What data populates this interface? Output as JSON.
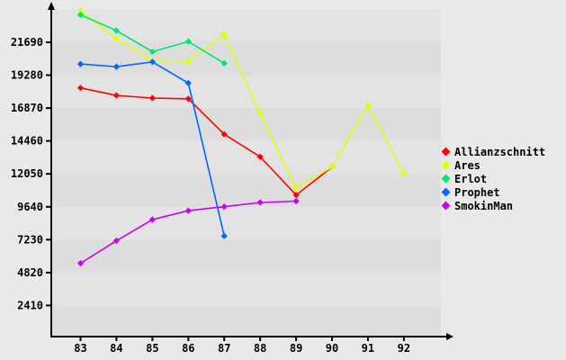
{
  "chart_data": {
    "type": "line",
    "title": "",
    "xlabel": "",
    "ylabel": "",
    "marker": "diamond",
    "grid": "alternating horizontal bands, no gridlines",
    "legend_position": "right-middle",
    "x_ticks": [
      "83",
      "84",
      "85",
      "86",
      "87",
      "88",
      "89",
      "90",
      "91",
      "92"
    ],
    "y_ticks": [
      "2410",
      "4820",
      "7230",
      "9640",
      "12050",
      "14460",
      "16870",
      "19280",
      "21690"
    ],
    "xlim": [
      82.2,
      93.2
    ],
    "ylim": [
      0,
      24100
    ],
    "series": [
      {
        "name": "Allianzschnitt",
        "color": "#ff0000",
        "x": [
          83,
          84,
          85,
          86,
          87,
          88,
          89,
          90
        ],
        "values": [
          18350,
          17800,
          17600,
          17550,
          14950,
          13300,
          10500,
          12550
        ]
      },
      {
        "name": "Ares",
        "color": "#e1ff00",
        "x": [
          83,
          84,
          85,
          86,
          87,
          88,
          89,
          90,
          91,
          92
        ],
        "values": [
          24000,
          21950,
          20350,
          20300,
          22250,
          16500,
          11000,
          12550,
          17100,
          12050
        ]
      },
      {
        "name": "Erlot",
        "color": "#00e673",
        "x": [
          83,
          84,
          85,
          86,
          87
        ],
        "values": [
          23700,
          22550,
          21000,
          21750,
          20150
        ]
      },
      {
        "name": "Prophet",
        "color": "#0066ff",
        "x": [
          83,
          84,
          85,
          86,
          87
        ],
        "values": [
          20100,
          19900,
          20250,
          18700,
          7500
        ]
      },
      {
        "name": "SmokinMan",
        "color": "#cc00f0",
        "x": [
          83,
          84,
          85,
          86,
          87,
          88,
          89
        ],
        "values": [
          5500,
          7150,
          8700,
          9350,
          9650,
          9950,
          10050
        ]
      }
    ]
  },
  "colors": {
    "background": "#e9e9e9",
    "band_light": "#e3e3e3",
    "band_dark": "#dddddd",
    "axis": "#000000",
    "label": "#000000"
  }
}
